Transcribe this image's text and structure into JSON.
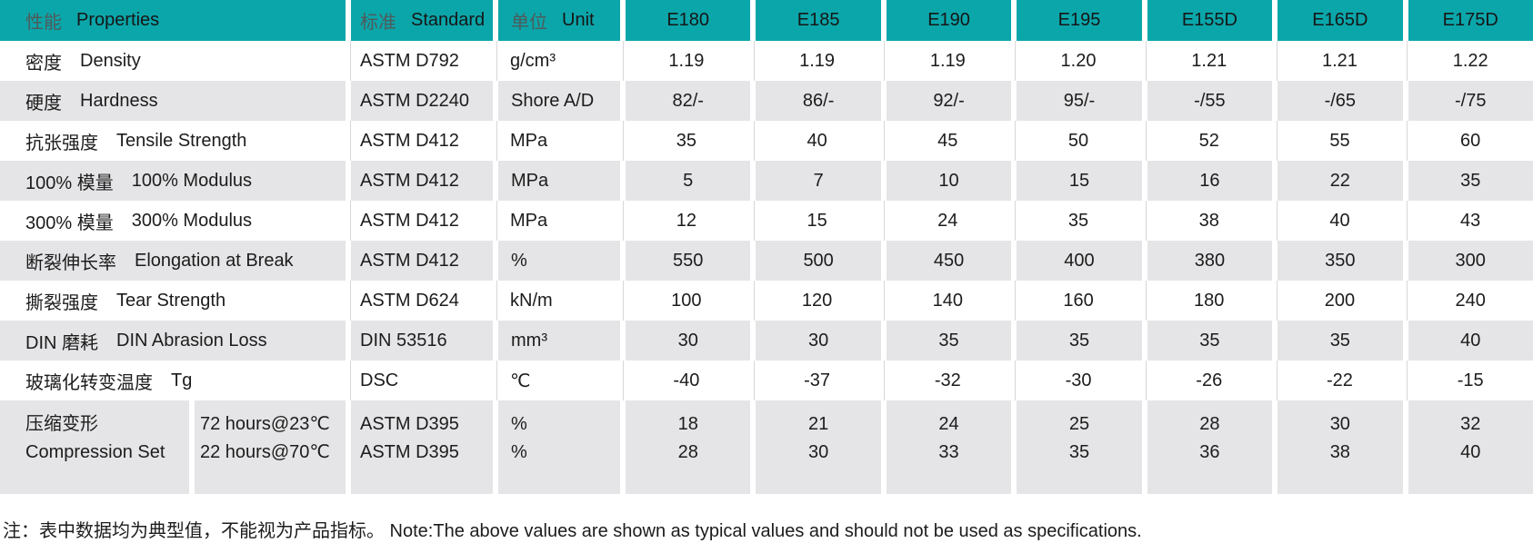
{
  "table": {
    "header": {
      "properties_zh": "性能",
      "properties_en": "Properties",
      "standard_zh": "标准",
      "standard_en": "Standard",
      "unit_zh": "单位",
      "unit_en": "Unit",
      "grades": [
        "E180",
        "E185",
        "E190",
        "E195",
        "E155D",
        "E165D",
        "E175D"
      ]
    },
    "rows": [
      {
        "zh": "密度",
        "en": "Density",
        "standard": "ASTM D792",
        "unit": "g/cm³",
        "values": [
          "1.19",
          "1.19",
          "1.19",
          "1.20",
          "1.21",
          "1.21",
          "1.22"
        ]
      },
      {
        "zh": "硬度",
        "en": "Hardness",
        "standard": "ASTM D2240",
        "unit": "Shore A/D",
        "values": [
          "82/-",
          "86/-",
          "92/-",
          "95/-",
          "-/55",
          "-/65",
          "-/75"
        ]
      },
      {
        "zh": "抗张强度",
        "en": "Tensile Strength",
        "standard": "ASTM D412",
        "unit": "MPa",
        "values": [
          "35",
          "40",
          "45",
          "50",
          "52",
          "55",
          "60"
        ]
      },
      {
        "zh": "100% 模量",
        "en": "100% Modulus",
        "standard": "ASTM D412",
        "unit": "MPa",
        "values": [
          "5",
          "7",
          "10",
          "15",
          "16",
          "22",
          "35"
        ]
      },
      {
        "zh": "300% 模量",
        "en": "300% Modulus",
        "standard": "ASTM D412",
        "unit": "MPa",
        "values": [
          "12",
          "15",
          "24",
          "35",
          "38",
          "40",
          "43"
        ]
      },
      {
        "zh": "断裂伸长率",
        "en": "Elongation at Break",
        "standard": "ASTM D412",
        "unit": "%",
        "values": [
          "550",
          "500",
          "450",
          "400",
          "380",
          "350",
          "300"
        ]
      },
      {
        "zh": "撕裂强度",
        "en": "Tear Strength",
        "standard": "ASTM D624",
        "unit": "kN/m",
        "values": [
          "100",
          "120",
          "140",
          "160",
          "180",
          "200",
          "240"
        ]
      },
      {
        "zh": "DIN 磨耗",
        "en": "DIN Abrasion Loss",
        "standard": "DIN 53516",
        "unit": "mm³",
        "values": [
          "30",
          "30",
          "35",
          "35",
          "35",
          "35",
          "40"
        ]
      },
      {
        "zh": "玻璃化转变温度",
        "en": "Tg",
        "standard": "DSC",
        "unit": "℃",
        "values": [
          "-40",
          "-37",
          "-32",
          "-30",
          "-26",
          "-22",
          "-15"
        ]
      }
    ],
    "compression": {
      "zh": "压缩变形",
      "en": "Compression Set",
      "sub_rows": [
        {
          "condition": "72 hours@23℃",
          "standard": "ASTM D395",
          "unit": "%",
          "values": [
            "18",
            "21",
            "24",
            "25",
            "28",
            "30",
            "32"
          ]
        },
        {
          "condition": "22 hours@70℃",
          "standard": "ASTM D395",
          "unit": "%",
          "values": [
            "28",
            "30",
            "33",
            "35",
            "36",
            "38",
            "40"
          ]
        }
      ]
    }
  },
  "footnote": "注：表中数据均为典型值，不能视为产品指标。 Note:The above values are shown as typical values and should not be used as specifications.",
  "colors": {
    "header_teal": "#0ba6aa",
    "row_gray": "#e5e5e7",
    "text": "#1c1c1c"
  },
  "chart_data": {
    "type": "table",
    "columns": [
      "性能 Properties",
      "标准 Standard",
      "单位 Unit",
      "E180",
      "E185",
      "E190",
      "E195",
      "E155D",
      "E165D",
      "E175D"
    ],
    "rows": [
      [
        "密度 Density",
        "ASTM D792",
        "g/cm³",
        "1.19",
        "1.19",
        "1.19",
        "1.20",
        "1.21",
        "1.21",
        "1.22"
      ],
      [
        "硬度 Hardness",
        "ASTM D2240",
        "Shore A/D",
        "82/-",
        "86/-",
        "92/-",
        "95/-",
        "-/55",
        "-/65",
        "-/75"
      ],
      [
        "抗张强度 Tensile Strength",
        "ASTM D412",
        "MPa",
        "35",
        "40",
        "45",
        "50",
        "52",
        "55",
        "60"
      ],
      [
        "100% 模量 100% Modulus",
        "ASTM D412",
        "MPa",
        "5",
        "7",
        "10",
        "15",
        "16",
        "22",
        "35"
      ],
      [
        "300% 模量 300% Modulus",
        "ASTM D412",
        "MPa",
        "12",
        "15",
        "24",
        "35",
        "38",
        "40",
        "43"
      ],
      [
        "断裂伸长率 Elongation at Break",
        "ASTM D412",
        "%",
        "550",
        "500",
        "450",
        "400",
        "380",
        "350",
        "300"
      ],
      [
        "撕裂强度 Tear Strength",
        "ASTM D624",
        "kN/m",
        "100",
        "120",
        "140",
        "160",
        "180",
        "200",
        "240"
      ],
      [
        "DIN 磨耗 DIN Abrasion Loss",
        "DIN 53516",
        "mm³",
        "30",
        "30",
        "35",
        "35",
        "35",
        "35",
        "40"
      ],
      [
        "玻璃化转变温度 Tg",
        "DSC",
        "℃",
        "-40",
        "-37",
        "-32",
        "-30",
        "-26",
        "-22",
        "-15"
      ],
      [
        "压缩变形 Compression Set 72 hours@23℃",
        "ASTM D395",
        "%",
        "18",
        "21",
        "24",
        "25",
        "28",
        "30",
        "32"
      ],
      [
        "压缩变形 Compression Set 22 hours@70℃",
        "ASTM D395",
        "%",
        "28",
        "30",
        "33",
        "35",
        "36",
        "38",
        "40"
      ]
    ]
  }
}
